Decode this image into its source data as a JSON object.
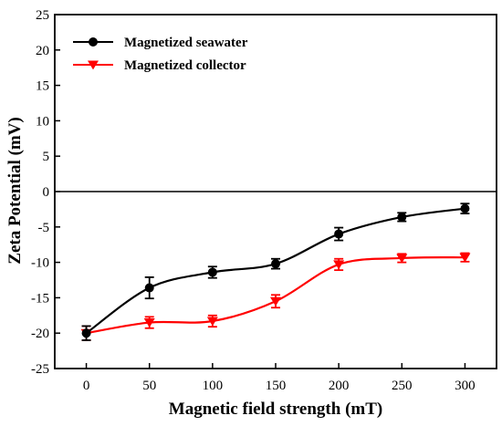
{
  "chart_data": {
    "type": "line",
    "xlabel": "Magnetic field strength (mT)",
    "ylabel": "Zeta Potential (mV)",
    "x": [
      0,
      50,
      100,
      150,
      200,
      250,
      300
    ],
    "xlim": [
      -25,
      325
    ],
    "ylim": [
      -25,
      25
    ],
    "xticks": [
      0,
      50,
      100,
      150,
      200,
      250,
      300
    ],
    "yticks": [
      -25,
      -20,
      -15,
      -10,
      -5,
      0,
      5,
      10,
      15,
      20,
      25
    ],
    "reference_line_y": 0,
    "grid": false,
    "legend_position": "top-left",
    "series": [
      {
        "name": "Magnetized seawater",
        "color": "#000000",
        "marker": "circle",
        "values": [
          -20.0,
          -13.6,
          -11.4,
          -10.2,
          -6.0,
          -3.6,
          -2.4
        ],
        "errors": [
          1.0,
          1.5,
          0.8,
          0.7,
          0.9,
          0.6,
          0.7
        ]
      },
      {
        "name": "Magnetized collector",
        "color": "#ff0000",
        "marker": "triangle-down",
        "values": [
          -20.0,
          -18.5,
          -18.3,
          -15.5,
          -10.3,
          -9.4,
          -9.3
        ],
        "errors": [
          1.0,
          0.8,
          0.8,
          0.9,
          0.8,
          0.6,
          0.6
        ]
      }
    ]
  }
}
